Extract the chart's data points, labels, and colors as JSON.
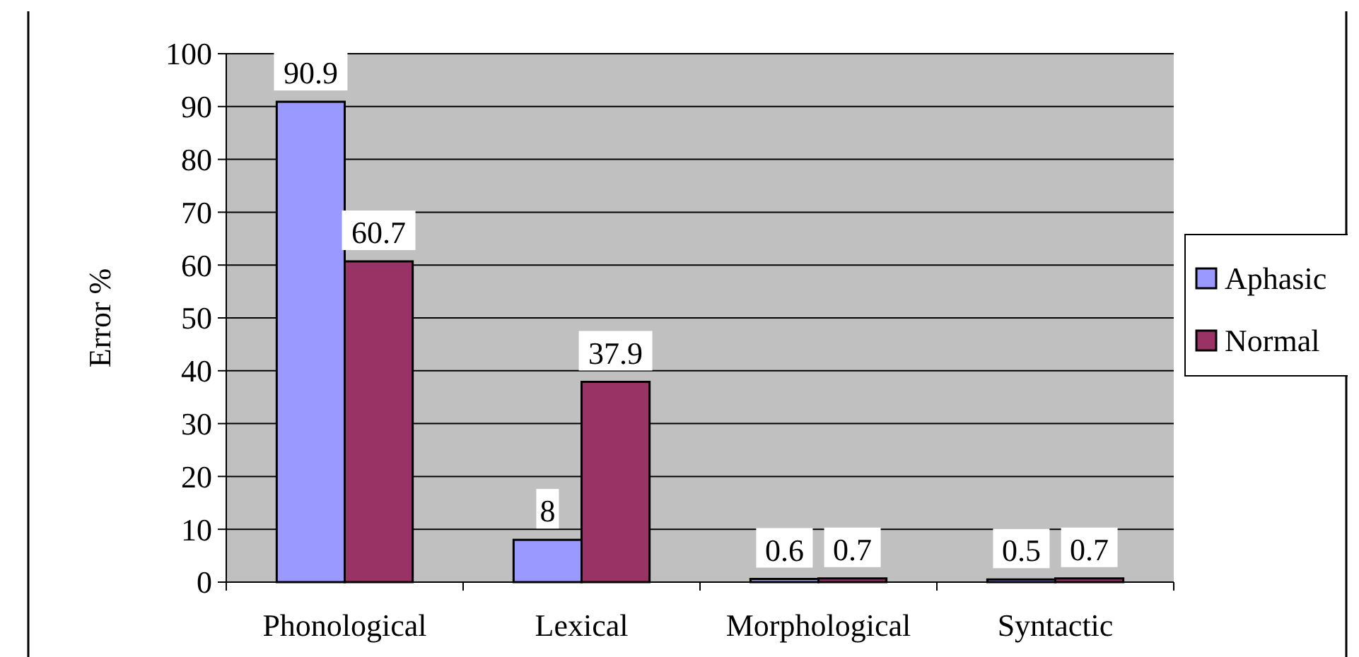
{
  "chart_data": {
    "type": "bar",
    "ylabel": "Error %",
    "categories": [
      "Phonological",
      "Lexical",
      "Morphological",
      "Syntactic"
    ],
    "series": [
      {
        "name": "Aphasic",
        "color": "#9999ff",
        "values": [
          90.9,
          8,
          0.6,
          0.5
        ]
      },
      {
        "name": "Normal",
        "color": "#993366",
        "values": [
          60.7,
          37.9,
          0.7,
          0.7
        ]
      }
    ],
    "ylim": [
      0,
      100
    ],
    "yticks": [
      0,
      10,
      20,
      30,
      40,
      50,
      60,
      70,
      80,
      90,
      100
    ],
    "grid": "y",
    "legend": "right",
    "data_labels": true
  }
}
